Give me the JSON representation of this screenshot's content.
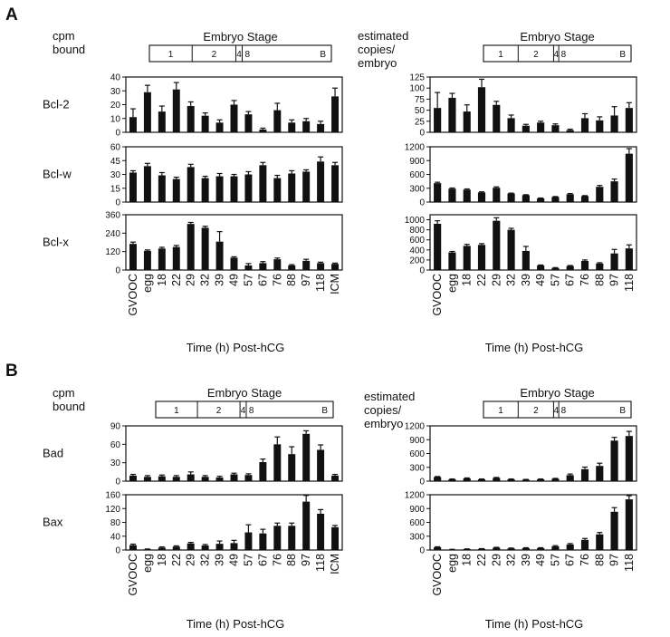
{
  "panels": {
    "a": "A",
    "b": "B"
  },
  "headers": {
    "cpm_line1": "cpm",
    "cpm_line2": "bound",
    "est_line1": "estimated",
    "est_line2": "copies/",
    "est_line3": "embryo"
  },
  "stage_bar": {
    "title": "Embryo Stage",
    "labels": [
      "1",
      "2",
      "4",
      "8",
      "B"
    ]
  },
  "x_title": "Time (h) Post-hCG",
  "colors": {
    "bar": "#111111",
    "axis": "#111111"
  },
  "chart_data": [
    {
      "type": "bar",
      "panel": "A",
      "gene": "Bcl-2",
      "units": "cpm bound",
      "categories": [
        "GVOOC",
        "egg",
        "18",
        "22",
        "29",
        "32",
        "39",
        "49",
        "57",
        "67",
        "76",
        "88",
        "97",
        "118",
        "ICM"
      ],
      "values": [
        11,
        29,
        15,
        31,
        19,
        12,
        7,
        20,
        13,
        2,
        16,
        7,
        8,
        6,
        26
      ],
      "errors": [
        6,
        5,
        4,
        5,
        3,
        2,
        2,
        3,
        2,
        1,
        5,
        2,
        2,
        2,
        6
      ],
      "ylim": [
        0,
        40
      ],
      "yticks": [
        0,
        10,
        20,
        30,
        40
      ]
    },
    {
      "type": "bar",
      "panel": "A",
      "gene": "Bcl-w",
      "units": "cpm bound",
      "categories": [
        "GVOOC",
        "egg",
        "18",
        "22",
        "29",
        "32",
        "39",
        "49",
        "57",
        "67",
        "76",
        "88",
        "97",
        "118",
        "ICM"
      ],
      "values": [
        32,
        39,
        29,
        25,
        38,
        26,
        28,
        28,
        30,
        40,
        26,
        31,
        33,
        44,
        40
      ],
      "errors": [
        2,
        3,
        3,
        2,
        3,
        2,
        3,
        2,
        3,
        3,
        3,
        3,
        2,
        5,
        3
      ],
      "ylim": [
        0,
        60
      ],
      "yticks": [
        0,
        15,
        30,
        45,
        60
      ]
    },
    {
      "type": "bar",
      "panel": "A",
      "gene": "Bcl-x",
      "units": "cpm bound",
      "categories": [
        "GVOOC",
        "egg",
        "18",
        "22",
        "29",
        "32",
        "39",
        "49",
        "57",
        "67",
        "76",
        "88",
        "97",
        "118",
        "ICM"
      ],
      "values": [
        170,
        125,
        140,
        150,
        300,
        275,
        185,
        80,
        30,
        45,
        70,
        30,
        60,
        45,
        40
      ],
      "errors": [
        12,
        6,
        8,
        10,
        10,
        10,
        65,
        6,
        12,
        10,
        8,
        5,
        10,
        6,
        5
      ],
      "ylim": [
        0,
        360
      ],
      "yticks": [
        0,
        120,
        240,
        360
      ]
    },
    {
      "type": "bar",
      "panel": "A",
      "gene": "Bcl-2",
      "units": "estimated copies/embryo",
      "categories": [
        "GVOOC",
        "egg",
        "18",
        "22",
        "29",
        "32",
        "39",
        "49",
        "57",
        "67",
        "76",
        "88",
        "97",
        "118"
      ],
      "values": [
        55,
        78,
        47,
        102,
        62,
        32,
        15,
        22,
        16,
        5,
        32,
        27,
        38,
        55
      ],
      "errors": [
        35,
        10,
        15,
        18,
        8,
        7,
        3,
        3,
        3,
        2,
        10,
        8,
        20,
        12
      ],
      "ylim": [
        0,
        125
      ],
      "yticks": [
        0,
        25,
        50,
        75,
        100,
        125
      ]
    },
    {
      "type": "bar",
      "panel": "A",
      "gene": "Bcl-w",
      "units": "estimated copies/embryo",
      "categories": [
        "GVOOC",
        "egg",
        "18",
        "22",
        "29",
        "32",
        "39",
        "49",
        "57",
        "67",
        "76",
        "88",
        "97",
        "118"
      ],
      "values": [
        410,
        290,
        270,
        210,
        310,
        185,
        150,
        80,
        110,
        170,
        130,
        330,
        450,
        1050
      ],
      "errors": [
        20,
        15,
        15,
        12,
        20,
        10,
        10,
        8,
        10,
        15,
        10,
        30,
        50,
        110
      ],
      "ylim": [
        0,
        1200
      ],
      "yticks": [
        0,
        300,
        600,
        900,
        1200
      ]
    },
    {
      "type": "bar",
      "panel": "A",
      "gene": "Bcl-x",
      "units": "estimated copies/embryo",
      "categories": [
        "GVOOC",
        "egg",
        "18",
        "22",
        "29",
        "32",
        "39",
        "49",
        "57",
        "67",
        "76",
        "88",
        "97",
        "118"
      ],
      "values": [
        920,
        350,
        480,
        500,
        980,
        800,
        380,
        90,
        40,
        80,
        180,
        130,
        330,
        430
      ],
      "errors": [
        60,
        20,
        30,
        25,
        60,
        30,
        90,
        10,
        8,
        10,
        20,
        15,
        80,
        70
      ],
      "ylim": [
        0,
        1100
      ],
      "yticks": [
        0,
        200,
        400,
        600,
        800,
        1000
      ]
    },
    {
      "type": "bar",
      "panel": "B",
      "gene": "Bad",
      "units": "cpm bound",
      "categories": [
        "GVOOC",
        "egg",
        "18",
        "22",
        "29",
        "32",
        "39",
        "49",
        "57",
        "67",
        "76",
        "88",
        "97",
        "118",
        "ICM"
      ],
      "values": [
        9,
        7,
        8,
        7,
        11,
        7,
        6,
        11,
        10,
        31,
        60,
        44,
        77,
        51,
        9
      ],
      "errors": [
        2,
        2,
        2,
        2,
        4,
        2,
        2,
        2,
        2,
        5,
        12,
        12,
        5,
        8,
        2
      ],
      "ylim": [
        0,
        90
      ],
      "yticks": [
        0,
        30,
        60,
        90
      ]
    },
    {
      "type": "bar",
      "panel": "B",
      "gene": "Bax",
      "units": "cpm bound",
      "categories": [
        "GVOOC",
        "egg",
        "18",
        "22",
        "29",
        "32",
        "39",
        "49",
        "57",
        "67",
        "76",
        "88",
        "97",
        "118",
        "ICM"
      ],
      "values": [
        14,
        2,
        7,
        10,
        19,
        13,
        18,
        20,
        51,
        48,
        70,
        70,
        140,
        105,
        66
      ],
      "errors": [
        3,
        1,
        2,
        2,
        3,
        3,
        8,
        8,
        22,
        12,
        8,
        8,
        18,
        12,
        5
      ],
      "ylim": [
        0,
        160
      ],
      "yticks": [
        0,
        40,
        80,
        120,
        160
      ]
    },
    {
      "type": "bar",
      "panel": "B",
      "gene": "Bad",
      "units": "estimated copies/embryo",
      "categories": [
        "GVOOC",
        "egg",
        "18",
        "22",
        "29",
        "32",
        "39",
        "49",
        "57",
        "67",
        "76",
        "88",
        "97",
        "118"
      ],
      "values": [
        90,
        40,
        60,
        40,
        70,
        40,
        30,
        40,
        50,
        130,
        260,
        330,
        880,
        980
      ],
      "errors": [
        10,
        8,
        10,
        8,
        10,
        8,
        8,
        8,
        10,
        25,
        45,
        60,
        70,
        100
      ],
      "ylim": [
        0,
        1200
      ],
      "yticks": [
        0,
        300,
        600,
        900,
        1200
      ]
    },
    {
      "type": "bar",
      "panel": "B",
      "gene": "Bax",
      "units": "estimated copies/embryo",
      "categories": [
        "GVOOC",
        "egg",
        "18",
        "22",
        "29",
        "32",
        "39",
        "49",
        "57",
        "67",
        "76",
        "88",
        "97",
        "118"
      ],
      "values": [
        60,
        10,
        20,
        25,
        50,
        35,
        40,
        40,
        80,
        120,
        220,
        340,
        830,
        1100
      ],
      "errors": [
        10,
        5,
        5,
        5,
        8,
        8,
        10,
        10,
        15,
        20,
        30,
        40,
        90,
        80
      ],
      "ylim": [
        0,
        1200
      ],
      "yticks": [
        0,
        300,
        600,
        900,
        1200
      ]
    }
  ]
}
